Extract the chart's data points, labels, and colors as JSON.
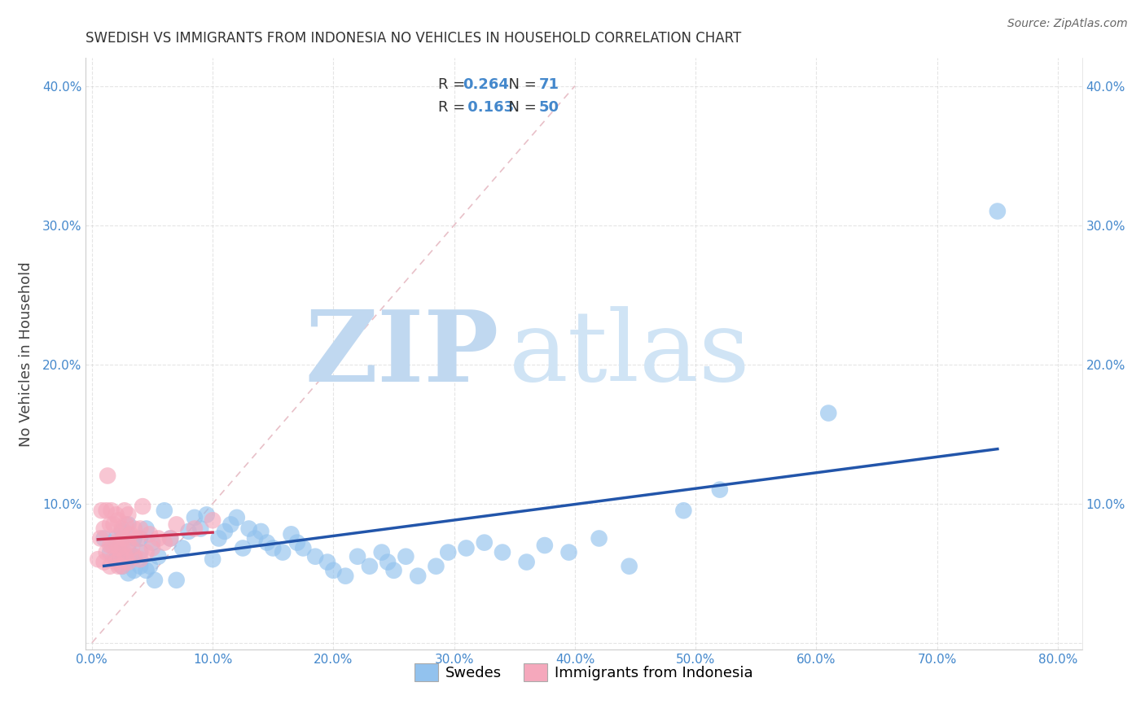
{
  "title": "SWEDISH VS IMMIGRANTS FROM INDONESIA NO VEHICLES IN HOUSEHOLD CORRELATION CHART",
  "source": "Source: ZipAtlas.com",
  "ylabel": "No Vehicles in Household",
  "xlim": [
    -0.005,
    0.82
  ],
  "ylim": [
    -0.005,
    0.42
  ],
  "xticks": [
    0.0,
    0.1,
    0.2,
    0.3,
    0.4,
    0.5,
    0.6,
    0.7,
    0.8
  ],
  "yticks": [
    0.0,
    0.1,
    0.2,
    0.3,
    0.4
  ],
  "R1": 0.264,
  "N1": 71,
  "R2": 0.163,
  "N2": 50,
  "blue_scatter_color": "#92C2EE",
  "pink_scatter_color": "#F5A8BC",
  "blue_line_color": "#2255AA",
  "pink_line_color": "#CC3355",
  "diag_line_color": "#E8C0C8",
  "axis_color": "#4488CC",
  "title_color": "#333333",
  "grid_color": "#CCCCCC",
  "legend_label1": "Swedes",
  "legend_label2": "Immigrants from Indonesia",
  "swedes_x": [
    0.01,
    0.015,
    0.02,
    0.02,
    0.025,
    0.025,
    0.025,
    0.03,
    0.03,
    0.03,
    0.03,
    0.035,
    0.035,
    0.035,
    0.04,
    0.04,
    0.04,
    0.045,
    0.045,
    0.048,
    0.05,
    0.052,
    0.055,
    0.06,
    0.065,
    0.07,
    0.075,
    0.08,
    0.085,
    0.09,
    0.095,
    0.1,
    0.105,
    0.11,
    0.115,
    0.12,
    0.125,
    0.13,
    0.135,
    0.14,
    0.145,
    0.15,
    0.158,
    0.165,
    0.17,
    0.175,
    0.185,
    0.195,
    0.2,
    0.21,
    0.22,
    0.23,
    0.24,
    0.245,
    0.25,
    0.26,
    0.27,
    0.285,
    0.295,
    0.31,
    0.325,
    0.34,
    0.36,
    0.375,
    0.395,
    0.42,
    0.445,
    0.49,
    0.52,
    0.61,
    0.75
  ],
  "swedes_y": [
    0.075,
    0.065,
    0.06,
    0.075,
    0.055,
    0.065,
    0.08,
    0.05,
    0.06,
    0.07,
    0.085,
    0.052,
    0.062,
    0.075,
    0.055,
    0.065,
    0.075,
    0.052,
    0.082,
    0.055,
    0.072,
    0.045,
    0.062,
    0.095,
    0.075,
    0.045,
    0.068,
    0.08,
    0.09,
    0.082,
    0.092,
    0.06,
    0.075,
    0.08,
    0.085,
    0.09,
    0.068,
    0.082,
    0.075,
    0.08,
    0.072,
    0.068,
    0.065,
    0.078,
    0.072,
    0.068,
    0.062,
    0.058,
    0.052,
    0.048,
    0.062,
    0.055,
    0.065,
    0.058,
    0.052,
    0.062,
    0.048,
    0.055,
    0.065,
    0.068,
    0.072,
    0.065,
    0.058,
    0.07,
    0.065,
    0.075,
    0.055,
    0.095,
    0.11,
    0.165,
    0.31
  ],
  "indo_x": [
    0.005,
    0.007,
    0.008,
    0.01,
    0.01,
    0.012,
    0.012,
    0.013,
    0.015,
    0.015,
    0.015,
    0.016,
    0.017,
    0.018,
    0.018,
    0.02,
    0.02,
    0.02,
    0.022,
    0.022,
    0.022,
    0.023,
    0.024,
    0.025,
    0.025,
    0.025,
    0.026,
    0.027,
    0.028,
    0.028,
    0.03,
    0.03,
    0.03,
    0.032,
    0.033,
    0.035,
    0.035,
    0.038,
    0.04,
    0.04,
    0.042,
    0.045,
    0.048,
    0.05,
    0.055,
    0.06,
    0.065,
    0.07,
    0.085,
    0.1
  ],
  "indo_y": [
    0.06,
    0.075,
    0.095,
    0.058,
    0.082,
    0.065,
    0.095,
    0.12,
    0.055,
    0.07,
    0.085,
    0.095,
    0.07,
    0.06,
    0.085,
    0.058,
    0.072,
    0.092,
    0.055,
    0.068,
    0.088,
    0.078,
    0.062,
    0.055,
    0.068,
    0.082,
    0.075,
    0.095,
    0.062,
    0.085,
    0.058,
    0.072,
    0.092,
    0.078,
    0.068,
    0.062,
    0.082,
    0.075,
    0.06,
    0.082,
    0.098,
    0.065,
    0.078,
    0.068,
    0.075,
    0.072,
    0.075,
    0.085,
    0.082,
    0.088
  ],
  "watermark_zip_color": "#C0D8F0",
  "watermark_atlas_color": "#D0E4F5"
}
